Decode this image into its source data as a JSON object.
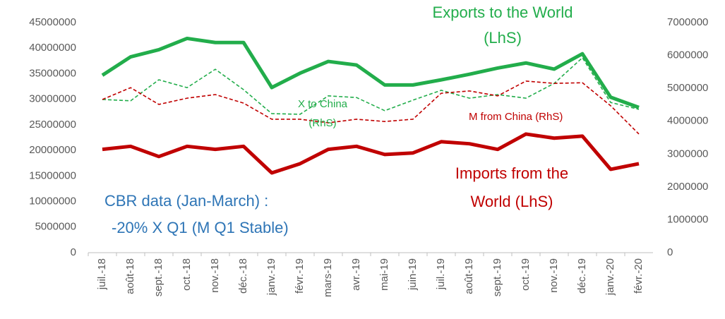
{
  "chart_data": {
    "type": "line",
    "categories": [
      "juil.-18",
      "août-18",
      "sept.-18",
      "oct.-18",
      "nov.-18",
      "déc.-18",
      "janv.-19",
      "févr.-19",
      "mars-19",
      "avr.-19",
      "mai-19",
      "juin-19",
      "juil.-19",
      "août-19",
      "sept.-19",
      "oct.-19",
      "nov.-19",
      "déc.-19",
      "janv.-20",
      "févr.-20"
    ],
    "series": [
      {
        "name": "Exports to the World (LhS)",
        "color": "#22ad4b",
        "style": "solid",
        "axis": "y",
        "values": [
          34700000,
          38300000,
          39700000,
          41900000,
          41100000,
          41100000,
          32300000,
          35100000,
          37400000,
          36700000,
          32800000,
          32800000,
          33800000,
          34900000,
          36100000,
          37100000,
          35900000,
          38900000,
          30400000,
          28400000
        ]
      },
      {
        "name": "Imports from the World (LhS)",
        "color": "#c00000",
        "style": "solid",
        "axis": "y",
        "values": [
          20200000,
          20800000,
          18800000,
          20800000,
          20200000,
          20800000,
          15600000,
          17400000,
          20200000,
          20800000,
          19200000,
          19500000,
          21700000,
          21300000,
          20200000,
          23200000,
          22400000,
          22800000,
          16300000,
          17400000
        ]
      },
      {
        "name": "X to China (RhS)",
        "color": "#22ad4b",
        "style": "dashed",
        "axis": "y2",
        "values": [
          4660000,
          4620000,
          5260000,
          5020000,
          5580000,
          4960000,
          4230000,
          4210000,
          4770000,
          4720000,
          4320000,
          4640000,
          4940000,
          4700000,
          4810000,
          4700000,
          5150000,
          5930000,
          4570000,
          4360000
        ]
      },
      {
        "name": "M from China (RhS)",
        "color": "#c00000",
        "style": "dashed",
        "axis": "y2",
        "values": [
          4660000,
          5020000,
          4510000,
          4700000,
          4810000,
          4550000,
          4060000,
          4060000,
          3950000,
          4060000,
          3990000,
          4060000,
          4850000,
          4920000,
          4770000,
          5220000,
          5150000,
          5170000,
          4470000,
          3610000
        ]
      }
    ],
    "annotations": [
      "CBR data (Jan-March) :",
      "-20% X Q1 (M Q1 Stable)"
    ],
    "ylim": [
      0,
      45000000
    ],
    "yticks": [
      0,
      5000000,
      10000000,
      15000000,
      20000000,
      25000000,
      30000000,
      35000000,
      40000000,
      45000000
    ],
    "y2lim": [
      0,
      7000000
    ],
    "y2ticks": [
      0,
      1000000,
      2000000,
      3000000,
      4000000,
      5000000,
      6000000,
      7000000
    ],
    "grid": false
  }
}
